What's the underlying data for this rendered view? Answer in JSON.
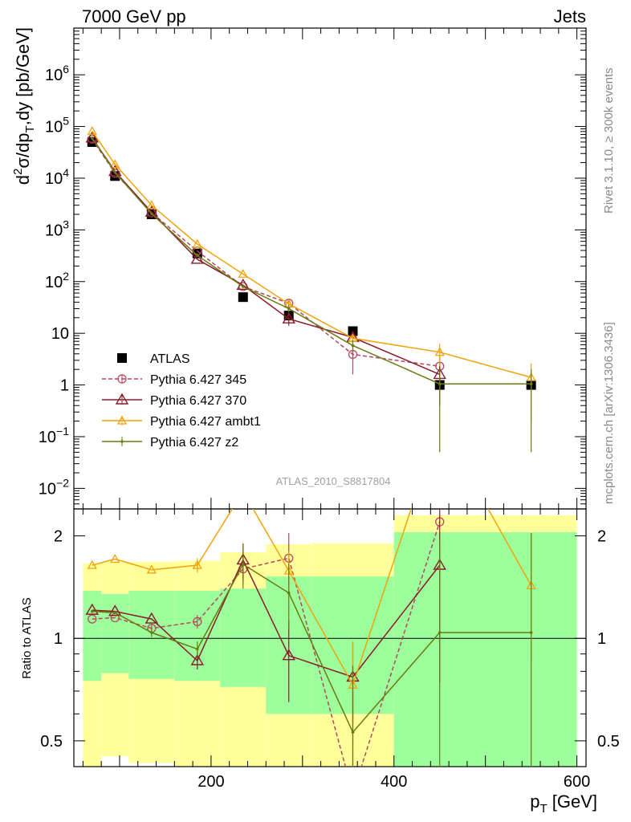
{
  "header": {
    "left": "7000 GeV pp",
    "right": "Jets"
  },
  "side_labels": {
    "rivet": "Rivet 3.1.10, ≥ 300k events",
    "mcplots": "mcplots.cern.ch [arXiv:1306.3436]"
  },
  "analysis_label": "ATLAS_2010_S8817804",
  "colors": {
    "atlas": "#000000",
    "p345": "#b5475f",
    "p370": "#8b1a2b",
    "ambt1": "#f0a30a",
    "z2": "#6b7a10",
    "band_yellow": "#ffff9c",
    "band_green": "#9cff9c",
    "side_text": "#8a8a8a"
  },
  "chart_data": [
    {
      "type": "scatter",
      "panel": "main",
      "title": "",
      "xlabel": "",
      "ylabel": "d²σ/dp_T,dy [pb/GeV]",
      "ylabel_parts": {
        "d": "d",
        "two": "2",
        "sigma": "σ/dp",
        "T": "T",
        "rest": ",dy [pb/GeV]"
      },
      "yscale": "log",
      "xlim": [
        50,
        610
      ],
      "ylim": [
        0.004,
        8000000
      ],
      "yticks": [
        {
          "value": 0.01,
          "base": "10",
          "exp": "−2"
        },
        {
          "value": 0.1,
          "base": "10",
          "exp": "−1"
        },
        {
          "value": 1,
          "base": "1",
          "exp": ""
        },
        {
          "value": 10,
          "base": "10",
          "exp": ""
        },
        {
          "value": 100,
          "base": "10",
          "exp": "2"
        },
        {
          "value": 1000,
          "base": "10",
          "exp": "3"
        },
        {
          "value": 10000,
          "base": "10",
          "exp": "4"
        },
        {
          "value": 100000,
          "base": "10",
          "exp": "5"
        },
        {
          "value": 1000000,
          "base": "10",
          "exp": "6"
        }
      ],
      "legend_position": "lower-left",
      "series": [
        {
          "name": "ATLAS",
          "key": "atlas",
          "style": "square",
          "x": [
            70,
            95,
            135,
            185,
            235,
            285,
            355,
            450,
            550
          ],
          "y": [
            50000,
            11000,
            2000,
            350,
            50,
            22,
            11,
            1.0,
            1.0
          ]
        },
        {
          "name": "Pythia 6.427 345",
          "key": "p345",
          "style": "circle-dashed",
          "x": [
            70,
            95,
            135,
            185,
            235,
            285,
            355,
            450
          ],
          "y": [
            57000,
            12500,
            2150,
            390,
            80,
            38,
            3.9,
            2.3
          ],
          "err": [
            0,
            0,
            0,
            0,
            0,
            6,
            2.3,
            1.5
          ]
        },
        {
          "name": "Pythia 6.427 370",
          "key": "p370",
          "style": "triangle",
          "x": [
            70,
            95,
            135,
            185,
            235,
            285,
            355,
            450
          ],
          "y": [
            60000,
            13500,
            2200,
            270,
            85,
            19,
            8.3,
            1.6
          ],
          "err": [
            0,
            0,
            0,
            0,
            0,
            5,
            1.5,
            1.2
          ]
        },
        {
          "name": "Pythia 6.427 ambt1",
          "key": "ambt1",
          "style": "triangle-small",
          "x": [
            70,
            95,
            135,
            185,
            235,
            285,
            355,
            450,
            550
          ],
          "y": [
            81000,
            18500,
            3000,
            530,
            140,
            37,
            8.0,
            4.3,
            1.4
          ],
          "err": [
            0,
            0,
            0,
            0,
            0,
            4,
            1.5,
            2.0,
            1.2
          ]
        },
        {
          "name": "Pythia 6.427 z2",
          "key": "z2",
          "style": "dot",
          "x": [
            70,
            95,
            135,
            185,
            235,
            285,
            355,
            450,
            550
          ],
          "y": [
            60000,
            13000,
            2050,
            320,
            80,
            30,
            5.8,
            1.05,
            1.05
          ],
          "err": [
            0,
            0,
            0,
            0,
            0,
            5,
            1.5,
            1.0,
            1.0
          ]
        }
      ]
    },
    {
      "type": "line",
      "panel": "ratio",
      "title": "",
      "xlabel": "p_T [GeV]",
      "xlabel_parts": {
        "p": "p",
        "T": "T",
        "unit": " [GeV]"
      },
      "ylabel": "Ratio to ATLAS",
      "yscale": "log",
      "xlim": [
        50,
        610
      ],
      "ylim": [
        0.42,
        2.4
      ],
      "xticks": [
        200,
        400,
        600
      ],
      "yticks": [
        0.5,
        1,
        2
      ],
      "reference_line": 1,
      "bands": {
        "xedges": [
          60,
          80,
          110,
          160,
          210,
          260,
          310,
          400,
          600
        ],
        "yellow_high": [
          1.66,
          1.68,
          1.68,
          1.69,
          1.79,
          1.89,
          1.9,
          2.3
        ],
        "yellow_low": [
          0.42,
          0.45,
          0.43,
          0.42,
          0.42,
          0.42,
          0.42,
          0.42
        ],
        "green_high": [
          1.38,
          1.35,
          1.38,
          1.38,
          1.4,
          1.52,
          1.52,
          2.05
        ],
        "green_low": [
          0.75,
          0.79,
          0.76,
          0.75,
          0.72,
          0.6,
          0.6,
          0.42
        ]
      },
      "series": [
        {
          "name": "Pythia 6.427 345",
          "key": "p345",
          "x": [
            70,
            95,
            135,
            185,
            235,
            285,
            355,
            450
          ],
          "y": [
            1.14,
            1.15,
            1.07,
            1.12,
            1.6,
            1.72,
            0.35,
            2.2
          ],
          "err": [
            0,
            0,
            0.03,
            0.05,
            0.15,
            0.32,
            0.35,
            0
          ]
        },
        {
          "name": "Pythia 6.427 370",
          "key": "p370",
          "x": [
            70,
            95,
            135,
            185,
            235,
            285,
            355,
            450
          ],
          "y": [
            1.21,
            1.2,
            1.14,
            0.86,
            1.7,
            0.89,
            0.77,
            1.64
          ],
          "err": [
            0,
            0,
            0,
            0.05,
            0.2,
            0.24,
            0.2,
            0.9
          ]
        },
        {
          "name": "Pythia 6.427 ambt1",
          "key": "ambt1",
          "x": [
            70,
            95,
            135,
            185,
            235,
            285,
            355,
            450,
            550
          ],
          "y": [
            1.64,
            1.71,
            1.59,
            1.64,
            2.7,
            1.58,
            0.73,
            4.3,
            1.43
          ],
          "err": [
            0,
            0,
            0,
            0.08,
            0,
            0.22,
            0.25,
            0,
            0.6
          ]
        },
        {
          "name": "Pythia 6.427 z2",
          "key": "z2",
          "x": [
            70,
            95,
            135,
            185,
            235,
            285,
            355,
            450,
            550
          ],
          "y": [
            1.2,
            1.19,
            1.04,
            0.93,
            1.65,
            1.36,
            0.53,
            1.04,
            1.04
          ],
          "err": [
            0,
            0,
            0.03,
            0.05,
            0.25,
            0.3,
            0.3,
            0.9,
            1.0
          ]
        }
      ]
    }
  ]
}
